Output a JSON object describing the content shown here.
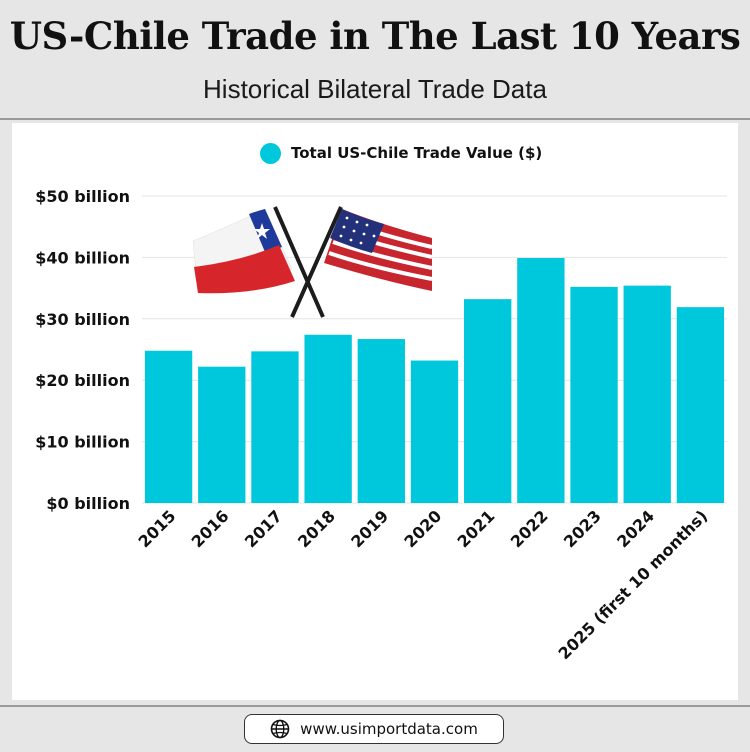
{
  "header": {
    "title": "US-Chile Trade in The Last 10 Years",
    "subtitle": "Historical Bilateral Trade Data"
  },
  "footer": {
    "url": "www.usimportdata.com",
    "icon": "globe-icon"
  },
  "decoration": {
    "icon": "crossed-flags-chile-usa-icon"
  },
  "colors": {
    "bar": "#00c8dc",
    "background": "#e6e6e6",
    "panel": "#ffffff"
  },
  "chart_data": {
    "type": "bar",
    "title": "",
    "xlabel": "",
    "ylabel": "",
    "categories": [
      "2015",
      "2016",
      "2017",
      "2018",
      "2019",
      "2020",
      "2021",
      "2022",
      "2023",
      "2024",
      "2025 (first 10 months)"
    ],
    "series": [
      {
        "name": "Total US-Chile Trade Value ($)",
        "values": [
          24.8,
          22.2,
          24.7,
          27.4,
          26.7,
          23.2,
          33.2,
          39.9,
          35.2,
          35.4,
          31.9
        ]
      }
    ],
    "y_tick_labels": [
      "$0 billion",
      "$10 billion",
      "$20 billion",
      "$30 billion",
      "$40 billion",
      "$50 billion"
    ],
    "y_ticks": [
      0,
      10,
      20,
      30,
      40,
      50
    ],
    "ylim": [
      0,
      50
    ],
    "grid": true,
    "legend": "top-center"
  }
}
